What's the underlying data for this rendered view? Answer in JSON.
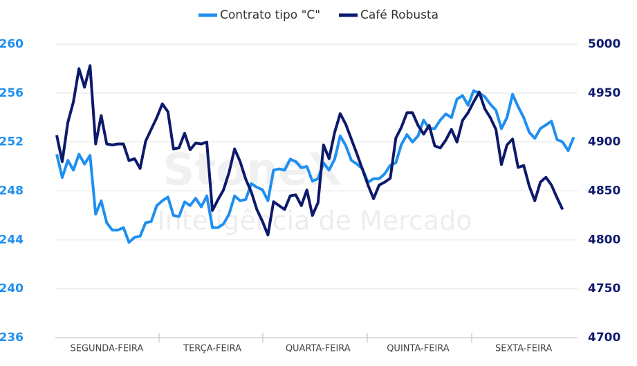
{
  "chart_data": {
    "type": "line",
    "legend": "top",
    "grid": true,
    "annotations": [
      "StoneX",
      "Inteligência de Mercado"
    ],
    "categories": [
      null,
      null,
      null,
      null,
      null,
      null,
      null,
      null,
      null,
      "SEGUNDA-FEIRA",
      null,
      null,
      null,
      null,
      null,
      null,
      null,
      null,
      null,
      null,
      null,
      null,
      null,
      null,
      null,
      null,
      null,
      null,
      "TERÇA-FEIRA",
      null,
      null,
      null,
      null,
      null,
      null,
      null,
      null,
      null,
      null,
      null,
      null,
      null,
      null,
      null,
      null,
      null,
      null,
      "QUARTA-FEIRA",
      null,
      null,
      null,
      null,
      null,
      null,
      null,
      null,
      null,
      null,
      null,
      null,
      null,
      null,
      null,
      null,
      null,
      "QUINTA-FEIRA",
      null,
      null,
      null,
      null,
      null,
      null,
      null,
      null,
      null,
      null,
      null,
      null,
      null,
      null,
      null,
      null,
      null,
      null,
      "SEXTA-FEIRA",
      null,
      null,
      null,
      null,
      null,
      null,
      null,
      null,
      null
    ],
    "ylim": [
      236,
      260
    ],
    "yticks": [
      236,
      240,
      244,
      248,
      252,
      256,
      260
    ],
    "y2lim": [
      4700,
      5000
    ],
    "y2ticks": [
      4700,
      4750,
      4800,
      4850,
      4900,
      4950,
      5000
    ],
    "series": [
      {
        "name": "Contrato tipo \"C\"",
        "color": "#1f8ff0",
        "axis": "y",
        "values": [
          251.0,
          249.1,
          250.5,
          249.7,
          251.0,
          250.2,
          250.9,
          246.1,
          247.2,
          245.4,
          244.8,
          244.8,
          245.0,
          243.8,
          244.2,
          244.3,
          245.4,
          245.5,
          246.8,
          247.2,
          247.5,
          246.0,
          245.9,
          247.1,
          246.8,
          247.4,
          246.7,
          247.6,
          245.0,
          245.0,
          245.3,
          246.1,
          247.6,
          247.2,
          247.3,
          248.6,
          248.3,
          248.1,
          247.2,
          249.7,
          249.8,
          249.7,
          250.6,
          250.4,
          249.9,
          250.0,
          248.8,
          249.0,
          250.3,
          249.7,
          250.6,
          252.5,
          251.7,
          250.5,
          250.2,
          249.8,
          248.7,
          249.0,
          249.0,
          249.4,
          250.1,
          250.3,
          251.8,
          252.6,
          252.0,
          252.5,
          253.8,
          253.1,
          253.1,
          253.8,
          254.3,
          254.0,
          255.5,
          255.8,
          255.0,
          256.2,
          256.0,
          255.7,
          255.1,
          254.6,
          253.1,
          254.0,
          255.9,
          254.9,
          254.0,
          252.8,
          252.3,
          253.1,
          253.4,
          253.7,
          252.2,
          252.0,
          251.3,
          252.4
        ]
      },
      {
        "name": "Café Robusta",
        "color": "#0d1a6b",
        "axis": "y2",
        "values": [
          4907,
          4880,
          4920,
          4941,
          4975,
          4956,
          4978,
          4898,
          4927,
          4898,
          4897,
          4898,
          4898,
          4881,
          4883,
          4873,
          4901,
          4913,
          4925,
          4939,
          4931,
          4893,
          4894,
          4909,
          4892,
          4899,
          4898,
          4900,
          4830,
          4841,
          4851,
          4869,
          4893,
          4880,
          4862,
          4849,
          4831,
          4819,
          4805,
          4839,
          4835,
          4831,
          4845,
          4846,
          4835,
          4851,
          4825,
          4838,
          4897,
          4883,
          4910,
          4929,
          4918,
          4903,
          4888,
          4872,
          4856,
          4842,
          4856,
          4859,
          4863,
          4904,
          4915,
          4930,
          4930,
          4917,
          4908,
          4917,
          4896,
          4894,
          4902,
          4913,
          4900,
          4922,
          4930,
          4941,
          4951,
          4934,
          4925,
          4913,
          4877,
          4897,
          4903,
          4874,
          4876,
          4855,
          4840,
          4859,
          4864,
          4856,
          4843,
          4831,
          null,
          null
        ]
      }
    ]
  }
}
